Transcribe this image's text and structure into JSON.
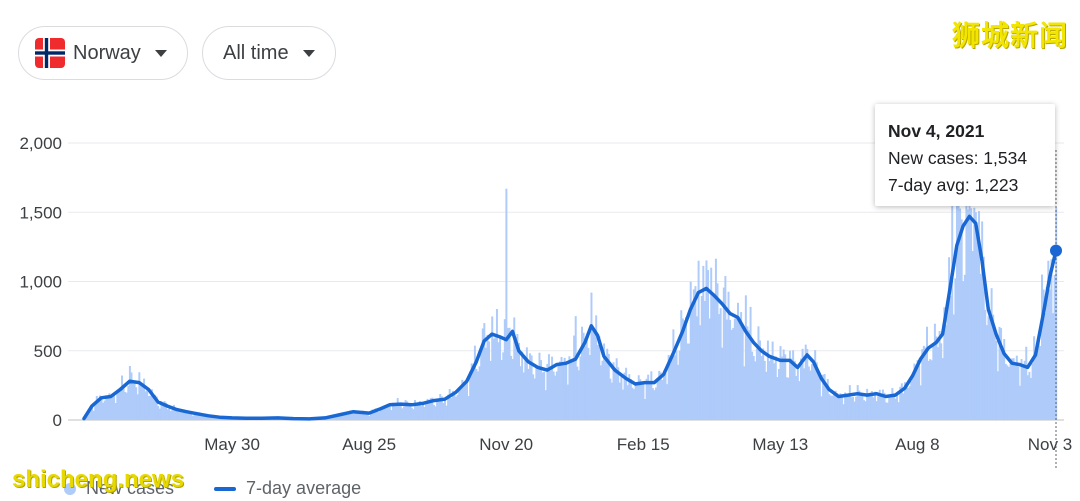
{
  "controls": {
    "country": "Norway",
    "country_flag": "norway-flag-icon",
    "range": "All time"
  },
  "watermarks": {
    "top_right": "狮城新闻",
    "bottom_left": "shicheng.news"
  },
  "tooltip": {
    "date": "Nov 4, 2021",
    "new_cases": "New cases: 1,534",
    "avg": "7-day avg: 1,223"
  },
  "legend": {
    "bars": "New cases",
    "line": "7-day average"
  },
  "colors": {
    "bars": "#aecbfa",
    "line": "#1967d2",
    "grid": "#e8eaed"
  },
  "chart_data": {
    "type": "bar",
    "title": "",
    "xlabel": "",
    "ylabel": "",
    "ylim": [
      0,
      2000
    ],
    "yticks": [
      0,
      500,
      1000,
      1500,
      2000
    ],
    "ytick_labels": [
      "0",
      "500",
      "1,000",
      "1,500",
      "2,000"
    ],
    "xticks": [
      {
        "label": "May 30",
        "date": "2020-05-30"
      },
      {
        "label": "Aug 25",
        "date": "2020-08-25"
      },
      {
        "label": "Nov 20",
        "date": "2020-11-20"
      },
      {
        "label": "Feb 15",
        "date": "2021-02-15"
      },
      {
        "label": "May 13",
        "date": "2021-05-13"
      },
      {
        "label": "Aug 8",
        "date": "2021-08-08"
      },
      {
        "label": "Nov 3",
        "date": "2021-11-03"
      }
    ],
    "x_domain": [
      "2020-02-26",
      "2021-11-04"
    ],
    "series": [
      {
        "name": "7-day average",
        "kind": "line",
        "points": [
          [
            "2020-02-26",
            10
          ],
          [
            "2020-03-02",
            100
          ],
          [
            "2020-03-08",
            160
          ],
          [
            "2020-03-14",
            170
          ],
          [
            "2020-03-20",
            220
          ],
          [
            "2020-03-26",
            280
          ],
          [
            "2020-04-01",
            270
          ],
          [
            "2020-04-07",
            220
          ],
          [
            "2020-04-13",
            130
          ],
          [
            "2020-04-19",
            100
          ],
          [
            "2020-04-25",
            75
          ],
          [
            "2020-05-01",
            60
          ],
          [
            "2020-05-08",
            45
          ],
          [
            "2020-05-15",
            30
          ],
          [
            "2020-05-22",
            20
          ],
          [
            "2020-05-30",
            15
          ],
          [
            "2020-06-08",
            12
          ],
          [
            "2020-06-18",
            12
          ],
          [
            "2020-06-28",
            15
          ],
          [
            "2020-07-08",
            10
          ],
          [
            "2020-07-18",
            8
          ],
          [
            "2020-07-28",
            15
          ],
          [
            "2020-08-07",
            40
          ],
          [
            "2020-08-15",
            60
          ],
          [
            "2020-08-25",
            50
          ],
          [
            "2020-09-01",
            80
          ],
          [
            "2020-09-07",
            110
          ],
          [
            "2020-09-14",
            115
          ],
          [
            "2020-09-21",
            110
          ],
          [
            "2020-09-28",
            120
          ],
          [
            "2020-10-05",
            140
          ],
          [
            "2020-10-12",
            150
          ],
          [
            "2020-10-19",
            200
          ],
          [
            "2020-10-26",
            280
          ],
          [
            "2020-11-01",
            420
          ],
          [
            "2020-11-06",
            570
          ],
          [
            "2020-11-11",
            620
          ],
          [
            "2020-11-16",
            600
          ],
          [
            "2020-11-20",
            580
          ],
          [
            "2020-11-24",
            640
          ],
          [
            "2020-11-28",
            500
          ],
          [
            "2020-12-04",
            420
          ],
          [
            "2020-12-10",
            380
          ],
          [
            "2020-12-16",
            360
          ],
          [
            "2020-12-22",
            400
          ],
          [
            "2020-12-28",
            410
          ],
          [
            "2021-01-03",
            440
          ],
          [
            "2021-01-09",
            560
          ],
          [
            "2021-01-13",
            680
          ],
          [
            "2021-01-17",
            610
          ],
          [
            "2021-01-21",
            460
          ],
          [
            "2021-01-28",
            360
          ],
          [
            "2021-02-04",
            300
          ],
          [
            "2021-02-10",
            260
          ],
          [
            "2021-02-16",
            270
          ],
          [
            "2021-02-22",
            270
          ],
          [
            "2021-02-28",
            330
          ],
          [
            "2021-03-06",
            480
          ],
          [
            "2021-03-12",
            640
          ],
          [
            "2021-03-17",
            800
          ],
          [
            "2021-03-22",
            920
          ],
          [
            "2021-03-27",
            950
          ],
          [
            "2021-04-01",
            900
          ],
          [
            "2021-04-06",
            840
          ],
          [
            "2021-04-11",
            770
          ],
          [
            "2021-04-16",
            740
          ],
          [
            "2021-04-21",
            640
          ],
          [
            "2021-04-26",
            560
          ],
          [
            "2021-05-01",
            500
          ],
          [
            "2021-05-06",
            460
          ],
          [
            "2021-05-13",
            430
          ],
          [
            "2021-05-19",
            430
          ],
          [
            "2021-05-24",
            380
          ],
          [
            "2021-05-30",
            470
          ],
          [
            "2021-06-03",
            420
          ],
          [
            "2021-06-08",
            300
          ],
          [
            "2021-06-13",
            220
          ],
          [
            "2021-06-19",
            170
          ],
          [
            "2021-06-25",
            180
          ],
          [
            "2021-07-01",
            190
          ],
          [
            "2021-07-07",
            180
          ],
          [
            "2021-07-13",
            190
          ],
          [
            "2021-07-19",
            170
          ],
          [
            "2021-07-25",
            180
          ],
          [
            "2021-07-31",
            230
          ],
          [
            "2021-08-05",
            320
          ],
          [
            "2021-08-10",
            440
          ],
          [
            "2021-08-15",
            520
          ],
          [
            "2021-08-20",
            560
          ],
          [
            "2021-08-24",
            620
          ],
          [
            "2021-08-28",
            900
          ],
          [
            "2021-09-02",
            1260
          ],
          [
            "2021-09-06",
            1400
          ],
          [
            "2021-09-10",
            1470
          ],
          [
            "2021-09-14",
            1420
          ],
          [
            "2021-09-18",
            1150
          ],
          [
            "2021-09-22",
            800
          ],
          [
            "2021-09-27",
            620
          ],
          [
            "2021-10-02",
            480
          ],
          [
            "2021-10-07",
            410
          ],
          [
            "2021-10-12",
            400
          ],
          [
            "2021-10-17",
            380
          ],
          [
            "2021-10-22",
            470
          ],
          [
            "2021-10-27",
            770
          ],
          [
            "2021-10-31",
            1030
          ],
          [
            "2021-11-04",
            1223
          ]
        ]
      },
      {
        "name": "New cases",
        "kind": "bars",
        "notable": [
          [
            "2020-03-26",
            390
          ],
          [
            "2020-11-20",
            1670
          ],
          [
            "2020-11-06",
            700
          ],
          [
            "2021-01-03",
            750
          ],
          [
            "2021-01-13",
            920
          ],
          [
            "2021-03-22",
            1150
          ],
          [
            "2021-03-30",
            1100
          ],
          [
            "2021-04-21",
            900
          ],
          [
            "2021-08-30",
            1600
          ],
          [
            "2021-09-03",
            1600
          ],
          [
            "2021-09-09",
            1520
          ],
          [
            "2021-09-14",
            1500
          ],
          [
            "2021-10-26",
            1050
          ],
          [
            "2021-10-30",
            1150
          ],
          [
            "2021-11-04",
            1534
          ]
        ]
      }
    ],
    "highlight": {
      "date": "2021-11-04",
      "new_cases": 1534,
      "avg": 1223
    }
  }
}
